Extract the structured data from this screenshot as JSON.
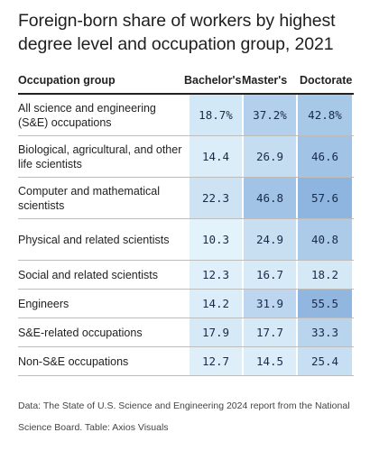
{
  "title": "Foreign-born share of workers by highest degree level and occupation group, 2021",
  "chart_data": {
    "type": "table",
    "columns": [
      "Occupation group",
      "Bachelor's",
      "Master's",
      "Doctorate"
    ],
    "rows": [
      {
        "label": "All science and engineering (S&E) occupations",
        "values": [
          "18.7%",
          "37.2%",
          "42.8%"
        ],
        "tall": true
      },
      {
        "label": "Biological, agricultural, and other life scientists",
        "values": [
          "14.4",
          "26.9",
          "46.6"
        ],
        "tall": true
      },
      {
        "label": "Computer and mathematical scientists",
        "values": [
          "22.3",
          "46.8",
          "57.6"
        ],
        "tall": true
      },
      {
        "label": "Physical and related scientists",
        "values": [
          "10.3",
          "24.9",
          "40.8"
        ],
        "tall": true
      },
      {
        "label": "Social and related scientists",
        "values": [
          "12.3",
          "16.7",
          "18.2"
        ],
        "tall": false
      },
      {
        "label": "Engineers",
        "values": [
          "14.2",
          "31.9",
          "55.5"
        ],
        "tall": false
      },
      {
        "label": "S&E-related occupations",
        "values": [
          "17.9",
          "17.7",
          "33.3"
        ],
        "tall": false
      },
      {
        "label": "Non-S&E occupations",
        "values": [
          "12.7",
          "14.5",
          "25.4"
        ],
        "tall": false
      }
    ],
    "color_scale": {
      "min": 10,
      "max": 58,
      "low_color": "#e3f3fb",
      "high_color": "#8cb4df"
    }
  },
  "source": "Data: The State of U.S. Science and Engineering 2024 report from the National Science Board. Table: Axios Visuals"
}
